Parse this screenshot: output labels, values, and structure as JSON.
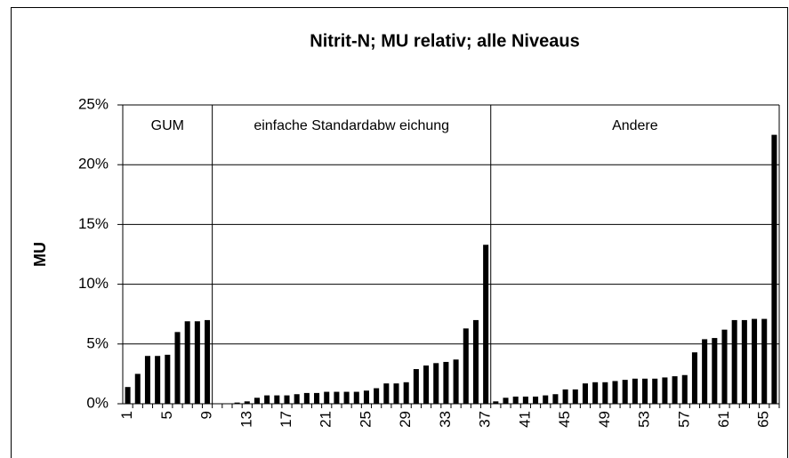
{
  "chart_data": {
    "type": "bar",
    "title": "Nitrit-N; MU relativ; alle Niveaus",
    "y_label": "MU",
    "categories": [
      "1",
      null,
      null,
      null,
      "5",
      null,
      null,
      null,
      "9",
      null,
      null,
      null,
      "13",
      null,
      null,
      null,
      "17",
      null,
      null,
      null,
      "21",
      null,
      null,
      null,
      "25",
      null,
      null,
      null,
      "29",
      null,
      null,
      null,
      "33",
      null,
      null,
      null,
      "37",
      null,
      null,
      null,
      "41",
      null,
      null,
      null,
      "45",
      null,
      null,
      null,
      "49",
      null,
      null,
      null,
      "53",
      null,
      null,
      null,
      "57",
      null,
      null,
      null,
      "61",
      null,
      null,
      null,
      "65",
      null
    ],
    "values": [
      1.4,
      2.5,
      4.0,
      4.0,
      4.1,
      6.0,
      6.9,
      6.9,
      7.0,
      0,
      0,
      0.1,
      0.2,
      0.5,
      0.7,
      0.7,
      0.7,
      0.8,
      0.9,
      0.9,
      1.0,
      1.0,
      1.0,
      1.0,
      1.1,
      1.3,
      1.7,
      1.7,
      1.8,
      2.9,
      3.2,
      3.4,
      3.5,
      3.7,
      6.3,
      7.0,
      13.3,
      0.2,
      0.5,
      0.6,
      0.6,
      0.6,
      0.7,
      0.8,
      1.2,
      1.2,
      1.7,
      1.8,
      1.8,
      1.9,
      2.0,
      2.1,
      2.1,
      2.1,
      2.2,
      2.3,
      2.4,
      4.3,
      5.4,
      5.5,
      6.2,
      7.0,
      7.0,
      7.1,
      7.1,
      22.5
    ],
    "color": "#000000",
    "groups": [
      {
        "label": "GUM",
        "count": 9
      },
      {
        "label": "einfache Standardabw eichung",
        "count": 28
      },
      {
        "label": "Andere",
        "count": 29
      }
    ],
    "ylim": [
      0,
      25
    ],
    "yticks": [
      {
        "value": 0,
        "label": "0%"
      },
      {
        "value": 5,
        "label": "5%"
      },
      {
        "value": 10,
        "label": "10%"
      },
      {
        "value": 15,
        "label": "15%"
      },
      {
        "value": 20,
        "label": "20%"
      },
      {
        "value": 25,
        "label": "25%"
      }
    ],
    "grid": true
  }
}
